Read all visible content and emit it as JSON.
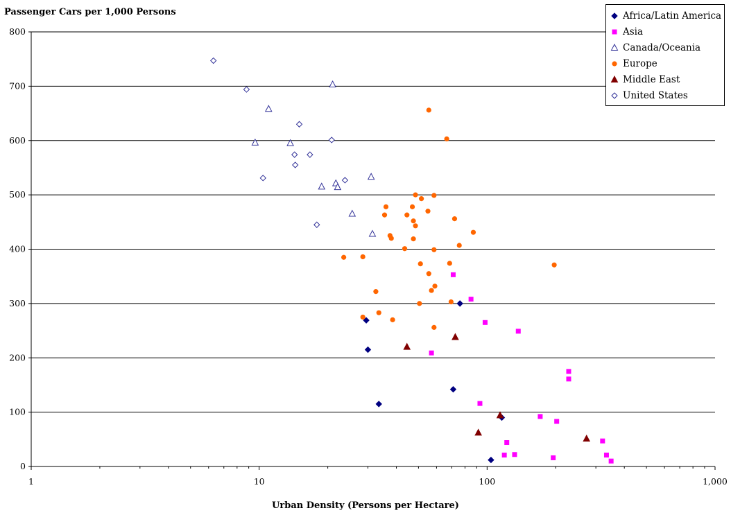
{
  "chart_data": {
    "type": "scatter",
    "title": "",
    "ylabel": "Passenger Cars per 1,000 Persons",
    "xlabel": "Urban Density (Persons per Hectare)",
    "x_scale": "log",
    "xlim": [
      1,
      1000
    ],
    "ylim": [
      0,
      800
    ],
    "x_ticks": [
      1,
      10,
      100,
      1000
    ],
    "x_tick_labels": [
      "1",
      "10",
      "100",
      "1,000"
    ],
    "y_ticks": [
      0,
      100,
      200,
      300,
      400,
      500,
      600,
      700,
      800
    ],
    "y_tick_labels": [
      "0",
      "100",
      "200",
      "300",
      "400",
      "500",
      "600",
      "700",
      "800"
    ],
    "grid": "horizontal",
    "legend_position": "top-right",
    "series": [
      {
        "name": "Africa/Latin America",
        "marker": "diamond-filled",
        "color": "#000080",
        "points": [
          [
            29.5,
            269
          ],
          [
            30,
            215
          ],
          [
            33.5,
            115
          ],
          [
            71,
            142
          ],
          [
            76,
            300
          ],
          [
            116,
            90
          ],
          [
            104,
            12
          ]
        ]
      },
      {
        "name": "Asia",
        "marker": "square-filled",
        "color": "#ff00ff",
        "points": [
          [
            71,
            353
          ],
          [
            85,
            308
          ],
          [
            98,
            265
          ],
          [
            137,
            249
          ],
          [
            57,
            209
          ],
          [
            93,
            116
          ],
          [
            228,
            175
          ],
          [
            228,
            161
          ],
          [
            171,
            92
          ],
          [
            202,
            83
          ],
          [
            122,
            44
          ],
          [
            119,
            21
          ],
          [
            132,
            22
          ],
          [
            195,
            16
          ],
          [
            321,
            47
          ],
          [
            334,
            21
          ],
          [
            350,
            10
          ]
        ]
      },
      {
        "name": "Canada/Oceania",
        "marker": "triangle-open",
        "color": "#333399",
        "points": [
          [
            21,
            703
          ],
          [
            11,
            658
          ],
          [
            9.6,
            596
          ],
          [
            13.7,
            595
          ],
          [
            31,
            533
          ],
          [
            21.7,
            521
          ],
          [
            18.8,
            515
          ],
          [
            22.1,
            514
          ],
          [
            25.6,
            465
          ],
          [
            31.4,
            428
          ]
        ]
      },
      {
        "name": "Europe",
        "marker": "circle-filled",
        "color": "#ff6600",
        "points": [
          [
            55.5,
            656
          ],
          [
            66.5,
            603
          ],
          [
            48.5,
            500
          ],
          [
            58.5,
            499
          ],
          [
            51.5,
            493
          ],
          [
            36,
            478
          ],
          [
            47,
            478
          ],
          [
            55,
            470
          ],
          [
            35.5,
            463
          ],
          [
            44.5,
            463
          ],
          [
            72,
            456
          ],
          [
            47.5,
            452
          ],
          [
            48.5,
            443
          ],
          [
            87,
            431
          ],
          [
            37.5,
            425
          ],
          [
            38,
            420
          ],
          [
            47.5,
            419
          ],
          [
            75.5,
            407
          ],
          [
            43.5,
            401
          ],
          [
            58.5,
            399
          ],
          [
            23.5,
            385
          ],
          [
            28.5,
            386
          ],
          [
            68.5,
            374
          ],
          [
            51,
            373
          ],
          [
            197,
            371
          ],
          [
            55.5,
            355
          ],
          [
            32.5,
            322
          ],
          [
            59,
            332
          ],
          [
            57,
            324
          ],
          [
            69.5,
            303
          ],
          [
            50.5,
            300
          ],
          [
            28.5,
            275
          ],
          [
            33.5,
            283
          ],
          [
            38.5,
            270
          ],
          [
            58.5,
            256
          ]
        ]
      },
      {
        "name": "Middle East",
        "marker": "triangle-filled",
        "color": "#800000",
        "points": [
          [
            44.5,
            220
          ],
          [
            72.5,
            238
          ],
          [
            114,
            94
          ],
          [
            91.5,
            62
          ],
          [
            273,
            51
          ]
        ]
      },
      {
        "name": "United States",
        "marker": "diamond-open",
        "color": "#333399",
        "points": [
          [
            6.3,
            747
          ],
          [
            8.8,
            694
          ],
          [
            15,
            630
          ],
          [
            20.8,
            601
          ],
          [
            14.3,
            574
          ],
          [
            16.7,
            574
          ],
          [
            14.4,
            555
          ],
          [
            10.4,
            531
          ],
          [
            23.8,
            527
          ],
          [
            17.9,
            445
          ]
        ]
      }
    ]
  }
}
